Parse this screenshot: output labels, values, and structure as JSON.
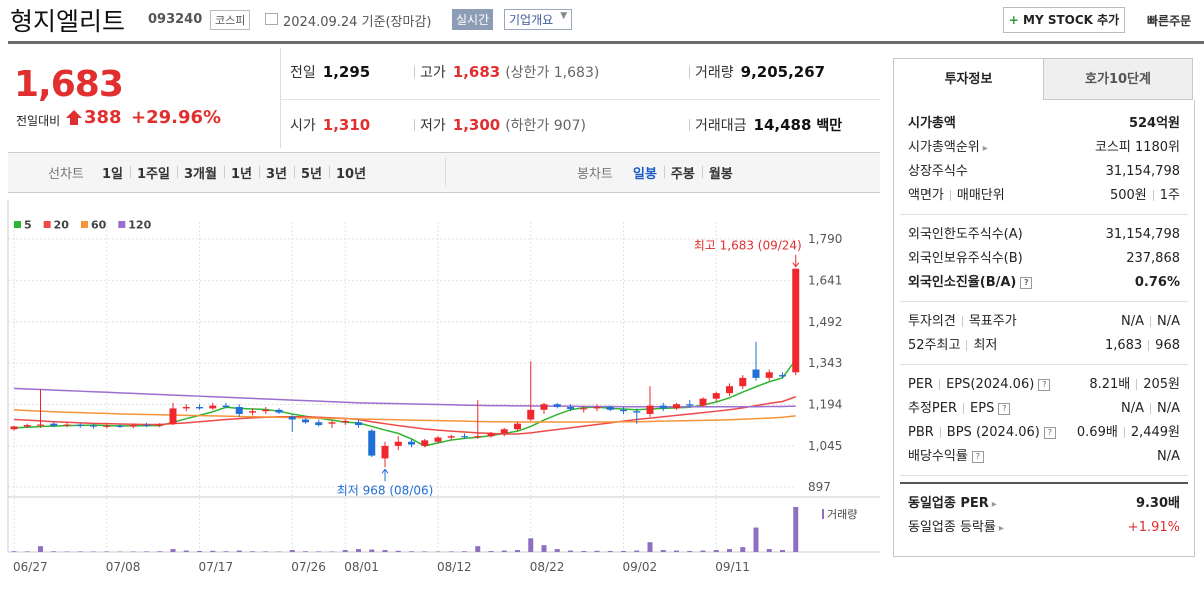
{
  "header": {
    "title": "형지엘리트",
    "code": "093240",
    "market": "코스피",
    "date": "2024.09.24 기준(장마감)",
    "realtime": "실시간",
    "company": "기업개요",
    "mystock": "MY STOCK 추가",
    "quick_order": "빠른주문"
  },
  "summary": {
    "price": "1,683",
    "change_label": "전일대비",
    "change": "388",
    "change_pct": "+29.96%",
    "stats": [
      [
        {
          "label": "전일",
          "value": "1,295"
        },
        {
          "label": "고가",
          "value": "1,683",
          "note": "(상한가 1,683)",
          "color": "#e12f2f"
        },
        {
          "label": "거래량",
          "value": "9,205,267"
        }
      ],
      [
        {
          "label": "시가",
          "value": "1,310",
          "color": "#e12f2f"
        },
        {
          "label": "저가",
          "value": "1,300",
          "note": "(하한가 907)",
          "color": "#e12f2f"
        },
        {
          "label": "거래대금",
          "value": "14,488",
          "note": "백만"
        }
      ]
    ]
  },
  "chart_tabs": {
    "line_label": "선차트",
    "line_periods": [
      "1일",
      "1주일",
      "3개월",
      "1년",
      "3년",
      "5년",
      "10년"
    ],
    "candle_label": "봉차트",
    "candle_periods": [
      "일봉",
      "주봉",
      "월봉"
    ],
    "active_candle": 0
  },
  "chart_data": {
    "type": "candlestick",
    "categories": [
      "06/27",
      null,
      null,
      null,
      null,
      null,
      null,
      "07/08",
      null,
      null,
      null,
      null,
      null,
      null,
      "07/17",
      null,
      null,
      null,
      null,
      null,
      null,
      "07/26",
      null,
      null,
      null,
      "08/01",
      null,
      null,
      null,
      null,
      null,
      null,
      "08/12",
      null,
      null,
      null,
      null,
      null,
      null,
      "08/22",
      null,
      null,
      null,
      null,
      null,
      null,
      "09/02",
      null,
      null,
      null,
      null,
      null,
      null,
      "09/11",
      null,
      null,
      null,
      null,
      null,
      null
    ],
    "open": [
      1105,
      1115,
      1118,
      1125,
      1120,
      1122,
      1118,
      1116,
      1117,
      1115,
      1120,
      1118,
      1125,
      1180,
      1185,
      1180,
      1190,
      1185,
      1165,
      1170,
      1175,
      1150,
      1140,
      1130,
      1125,
      1130,
      1130,
      1100,
      1000,
      1045,
      1060,
      1045,
      1060,
      1075,
      1080,
      1078,
      1080,
      1090,
      1105,
      1140,
      1175,
      1195,
      1185,
      1178,
      1180,
      1185,
      1175,
      1170,
      1160,
      1190,
      1180,
      1195,
      1190,
      1215,
      1235,
      1260,
      1320,
      1290,
      1300,
      1310
    ],
    "high": [
      1118,
      1125,
      1250,
      1130,
      1128,
      1128,
      1125,
      1124,
      1125,
      1126,
      1128,
      1127,
      1200,
      1195,
      1195,
      1200,
      1200,
      1195,
      1180,
      1185,
      1180,
      1155,
      1145,
      1140,
      1135,
      1140,
      1140,
      1105,
      1060,
      1080,
      1070,
      1070,
      1080,
      1085,
      1090,
      1210,
      1095,
      1110,
      1130,
      1350,
      1200,
      1200,
      1195,
      1190,
      1195,
      1190,
      1185,
      1180,
      1260,
      1200,
      1200,
      1210,
      1220,
      1240,
      1270,
      1300,
      1420,
      1320,
      1310,
      1683
    ],
    "low": [
      1100,
      1110,
      1110,
      1112,
      1112,
      1110,
      1108,
      1108,
      1110,
      1108,
      1112,
      1112,
      1120,
      1170,
      1175,
      1175,
      1180,
      1150,
      1155,
      1160,
      1160,
      1095,
      1125,
      1115,
      1110,
      1120,
      1110,
      1005,
      968,
      1030,
      1040,
      1040,
      1055,
      1065,
      1070,
      1070,
      1075,
      1080,
      1100,
      1135,
      1160,
      1180,
      1170,
      1165,
      1170,
      1170,
      1160,
      1125,
      1150,
      1170,
      1175,
      1185,
      1185,
      1205,
      1225,
      1250,
      1280,
      1280,
      1290,
      1300
    ],
    "close": [
      1115,
      1120,
      1122,
      1118,
      1122,
      1118,
      1116,
      1117,
      1115,
      1120,
      1118,
      1122,
      1180,
      1185,
      1180,
      1190,
      1185,
      1160,
      1170,
      1175,
      1165,
      1140,
      1130,
      1120,
      1130,
      1135,
      1120,
      1010,
      1045,
      1060,
      1050,
      1065,
      1075,
      1080,
      1078,
      1080,
      1090,
      1105,
      1125,
      1175,
      1195,
      1185,
      1178,
      1180,
      1185,
      1175,
      1170,
      1165,
      1190,
      1180,
      1195,
      1190,
      1215,
      1235,
      1260,
      1290,
      1290,
      1310,
      1295,
      1683
    ],
    "volume": [
      150000,
      120000,
      1200000,
      150000,
      100000,
      120000,
      100000,
      110000,
      90000,
      100000,
      120000,
      150000,
      600000,
      300000,
      200000,
      250000,
      150000,
      300000,
      150000,
      120000,
      100000,
      400000,
      150000,
      120000,
      100000,
      400000,
      600000,
      500000,
      400000,
      250000,
      150000,
      120000,
      100000,
      120000,
      150000,
      1200000,
      200000,
      300000,
      400000,
      2800000,
      1400000,
      600000,
      300000,
      200000,
      250000,
      200000,
      200000,
      300000,
      2000000,
      400000,
      300000,
      200000,
      300000,
      400000,
      600000,
      1000000,
      5000000,
      600000,
      400000,
      9205267
    ],
    "volume_label": "거래량",
    "volume_color": "#8e6fc0",
    "up_color": "#f0282d",
    "down_color": "#1f6fd6",
    "series": [
      {
        "name": "5",
        "color": "#2fb52f",
        "values": [
          1110,
          1112,
          1115,
          1116,
          1118,
          1119,
          1120,
          1118,
          1117,
          1117,
          1118,
          1118,
          1130,
          1143,
          1155,
          1168,
          1184,
          1180,
          1178,
          1176,
          1170,
          1160,
          1152,
          1145,
          1138,
          1130,
          1128,
          1115,
          1102,
          1090,
          1070,
          1045,
          1056,
          1066,
          1072,
          1076,
          1082,
          1090,
          1098,
          1115,
          1138,
          1158,
          1175,
          1183,
          1185,
          1180,
          1178,
          1175,
          1178,
          1180,
          1182,
          1184,
          1192,
          1203,
          1218,
          1239,
          1258,
          1276,
          1290,
          1355
        ]
      },
      {
        "name": "20",
        "color": "#ef4a4a",
        "values": [
          1140,
          1138,
          1135,
          1132,
          1130,
          1128,
          1126,
          1125,
          1124,
          1123,
          1122,
          1122,
          1125,
          1128,
          1132,
          1136,
          1140,
          1143,
          1146,
          1148,
          1150,
          1150,
          1150,
          1148,
          1146,
          1144,
          1140,
          1132,
          1125,
          1118,
          1112,
          1106,
          1102,
          1098,
          1095,
          1092,
          1090,
          1088,
          1088,
          1092,
          1098,
          1104,
          1110,
          1116,
          1122,
          1128,
          1134,
          1140,
          1145,
          1150,
          1155,
          1160,
          1165,
          1170,
          1175,
          1182,
          1190,
          1198,
          1205,
          1222
        ]
      },
      {
        "name": "60",
        "color": "#f5943a",
        "values": [
          1175,
          1172,
          1170,
          1168,
          1166,
          1165,
          1163,
          1162,
          1160,
          1159,
          1158,
          1157,
          1156,
          1155,
          1154,
          1153,
          1152,
          1151,
          1150,
          1149,
          1148,
          1147,
          1146,
          1145,
          1144,
          1143,
          1142,
          1141,
          1140,
          1139,
          1138,
          1137,
          1136,
          1135,
          1134,
          1133,
          1132,
          1132,
          1131,
          1131,
          1131,
          1131,
          1131,
          1131,
          1131,
          1131,
          1132,
          1132,
          1133,
          1134,
          1135,
          1136,
          1137,
          1138,
          1139,
          1141,
          1143,
          1145,
          1148,
          1153
        ]
      },
      {
        "name": "120",
        "color": "#9b6fd0",
        "values": [
          1252,
          1250,
          1248,
          1246,
          1244,
          1242,
          1240,
          1238,
          1236,
          1234,
          1232,
          1230,
          1228,
          1226,
          1224,
          1222,
          1220,
          1218,
          1216,
          1214,
          1212,
          1210,
          1208,
          1206,
          1204,
          1202,
          1200,
          1199,
          1198,
          1197,
          1196,
          1195,
          1194,
          1193,
          1192,
          1191,
          1190,
          1190,
          1189,
          1189,
          1188,
          1188,
          1188,
          1187,
          1187,
          1187,
          1186,
          1186,
          1186,
          1186,
          1186,
          1186,
          1186,
          1186,
          1186,
          1186,
          1186,
          1187,
          1187,
          1188
        ]
      }
    ],
    "high_label": "최고 1,683 (09/24)",
    "low_label": "최저 968 (08/06)",
    "ylim": [
      897,
      1790
    ],
    "yticks": [
      897,
      {
        "value": 1045,
        "label": "1,045"
      },
      {
        "value": 1194,
        "label": "1,194"
      },
      {
        "value": 1343,
        "label": "1,343"
      },
      {
        "value": 1492,
        "label": "1,492"
      },
      {
        "value": 1641,
        "label": "1,641"
      },
      {
        "value": 1790,
        "label": "1,790"
      }
    ],
    "grid": true
  },
  "invest": {
    "tabs": [
      "투자정보",
      "호가10단계"
    ],
    "groups": [
      [
        {
          "label": [
            "시가총액"
          ],
          "value": [
            "524억원"
          ],
          "bold": true
        },
        {
          "label": [
            "시가총액순위"
          ],
          "value": [
            "코스피 1180위"
          ],
          "link": true
        },
        {
          "label": [
            "상장주식수"
          ],
          "value": [
            "31,154,798"
          ]
        },
        {
          "label": [
            "액면가",
            "매매단위"
          ],
          "value": [
            "500원",
            "1주"
          ]
        }
      ],
      [
        {
          "label": [
            "외국인한도주식수(A)"
          ],
          "value": [
            "31,154,798"
          ]
        },
        {
          "label": [
            "외국인보유주식수(B)"
          ],
          "value": [
            "237,868"
          ]
        },
        {
          "label": [
            "외국인소진율(B/A)"
          ],
          "value": [
            "0.76%"
          ],
          "bold": true,
          "help": true
        }
      ],
      [
        {
          "label": [
            "투자의견",
            "목표주가"
          ],
          "value": [
            "N/A",
            "N/A"
          ]
        },
        {
          "label": [
            "52주최고",
            "최저"
          ],
          "value": [
            "1,683",
            "968"
          ]
        }
      ],
      [
        {
          "label": [
            "PER",
            "EPS(2024.06)"
          ],
          "value": [
            "8.21배",
            "205원"
          ],
          "help": true
        },
        {
          "label": [
            "추정PER",
            "EPS"
          ],
          "value": [
            "N/A",
            "N/A"
          ],
          "help": true
        },
        {
          "label": [
            "PBR",
            "BPS (2024.06)"
          ],
          "value": [
            "0.69배",
            "2,449원"
          ],
          "help": true
        },
        {
          "label": [
            "배당수익률"
          ],
          "value": [
            "N/A"
          ],
          "help": true
        }
      ],
      [
        {
          "label": [
            "동일업종 PER"
          ],
          "value": [
            "9.30배"
          ],
          "bold": true,
          "link": true
        },
        {
          "label": [
            "동일업종 등락률"
          ],
          "value": [
            "+1.91%"
          ],
          "link": true,
          "color": "#e12f2f"
        }
      ]
    ]
  }
}
